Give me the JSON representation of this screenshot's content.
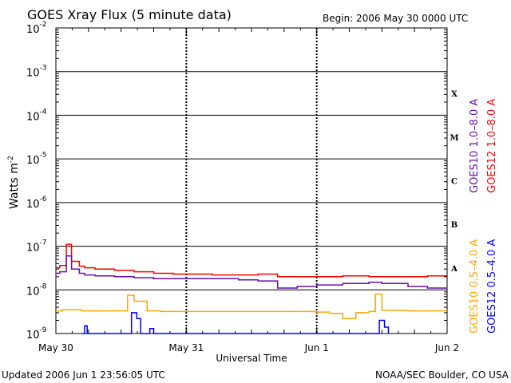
{
  "header": {
    "title": "GOES Xray Flux (5 minute data)",
    "begin_label": "Begin:  2006 May 30 0000 UTC"
  },
  "footer": {
    "updated": "Updated 2006 Jun  1 23:56:05 UTC",
    "credit": "NOAA/SEC Boulder, CO USA"
  },
  "colors": {
    "goes12_long": "#ff0000",
    "goes10_long": "#6a0dad",
    "goes10_short": "#ffa500",
    "goes12_short": "#0000ff"
  },
  "chart_data": {
    "type": "line",
    "title": "GOES Xray Flux (5 minute data)",
    "ylabel": "Watts m",
    "ylabel_sup": "-2",
    "xlabel": "Universal Time",
    "yscale": "log",
    "ylim": [
      1e-09,
      0.01
    ],
    "xlim_days": [
      0,
      3
    ],
    "x_ticks": [
      {
        "day": 0,
        "label": "May 30"
      },
      {
        "day": 1,
        "label": "May 31"
      },
      {
        "day": 2,
        "label": "Jun 1"
      },
      {
        "day": 3,
        "label": "Jun 2"
      }
    ],
    "y_ticks": [
      {
        "exp": -2,
        "base": "10",
        "sup": "-2"
      },
      {
        "exp": -3,
        "base": "10",
        "sup": "-3"
      },
      {
        "exp": -4,
        "base": "10",
        "sup": "-4"
      },
      {
        "exp": -5,
        "base": "10",
        "sup": "-5"
      },
      {
        "exp": -6,
        "base": "10",
        "sup": "-6"
      },
      {
        "exp": -7,
        "base": "10",
        "sup": "-7"
      },
      {
        "exp": -8,
        "base": "10",
        "sup": "-8"
      },
      {
        "exp": -9,
        "base": "10",
        "sup": "-9"
      }
    ],
    "flare_classes": [
      {
        "label": "X",
        "exp": -3.5
      },
      {
        "label": "M",
        "exp": -4.5
      },
      {
        "label": "C",
        "exp": -5.5
      },
      {
        "label": "B",
        "exp": -6.5
      },
      {
        "label": "A",
        "exp": -7.5
      }
    ],
    "legend_right": [
      {
        "text": "GOES12 1.0–8.0 A",
        "color": "#ff0000"
      },
      {
        "text": "GOES10 1.0–8.0 A",
        "color": "#6a0dad"
      }
    ],
    "legend_lower": [
      {
        "text": "GOES12 0.5–4.0 A",
        "color": "#0000ff"
      },
      {
        "text": "GOES10 0.5–4.0 A",
        "color": "#ffa500"
      }
    ],
    "series": [
      {
        "name": "GOES12 1.0–8.0 A",
        "color": "#ff0000",
        "x": [
          0,
          0.03,
          0.08,
          0.12,
          0.18,
          0.22,
          0.3,
          0.45,
          0.6,
          0.75,
          0.9,
          1.0,
          1.2,
          1.4,
          1.55,
          1.7,
          1.85,
          2.0,
          2.2,
          2.4,
          2.5,
          2.7,
          2.85,
          3.0
        ],
        "y": [
          3.2e-08,
          3.6e-08,
          1.1e-07,
          4.5e-08,
          3.5e-08,
          3.2e-08,
          3e-08,
          2.8e-08,
          2.6e-08,
          2.4e-08,
          2.3e-08,
          2.3e-08,
          2.2e-08,
          2.2e-08,
          2.3e-08,
          2e-08,
          2e-08,
          2e-08,
          2.1e-08,
          2e-08,
          2e-08,
          2e-08,
          2.1e-08,
          2e-08
        ]
      },
      {
        "name": "GOES10 1.0–8.0 A",
        "color": "#6a0dad",
        "x": [
          0,
          0.03,
          0.08,
          0.12,
          0.18,
          0.22,
          0.3,
          0.45,
          0.6,
          0.75,
          0.9,
          1.0,
          1.2,
          1.4,
          1.55,
          1.7,
          1.85,
          2.0,
          2.2,
          2.4,
          2.5,
          2.7,
          2.85,
          3.0
        ],
        "y": [
          2.4e-08,
          2.6e-08,
          6e-08,
          3e-08,
          2.4e-08,
          2.2e-08,
          2.1e-08,
          2e-08,
          1.9e-08,
          1.8e-08,
          1.8e-08,
          1.8e-08,
          1.8e-08,
          1.7e-08,
          1.6e-08,
          1.1e-08,
          1.2e-08,
          1.3e-08,
          1.4e-08,
          1.5e-08,
          1.4e-08,
          1.2e-08,
          1.1e-08,
          1.1e-08
        ]
      },
      {
        "name": "GOES10 0.5–4.0 A",
        "color": "#ffa500",
        "x": [
          0,
          0.05,
          0.2,
          0.3,
          0.5,
          0.55,
          0.6,
          0.7,
          0.8,
          1.0,
          1.2,
          1.5,
          1.8,
          2.0,
          2.1,
          2.2,
          2.3,
          2.4,
          2.45,
          2.5,
          2.7,
          2.9,
          3.0
        ],
        "y": [
          3.3e-09,
          3.5e-09,
          3.3e-09,
          3.3e-09,
          3.3e-09,
          7.5e-09,
          5.5e-09,
          3.3e-09,
          3.2e-09,
          3.2e-09,
          3.2e-09,
          3.2e-09,
          3.2e-09,
          3.1e-09,
          2.9e-09,
          2.2e-09,
          3e-09,
          3.2e-09,
          8e-09,
          3.4e-09,
          3.3e-09,
          3.3e-09,
          3.3e-09
        ]
      },
      {
        "name": "GOES12 0.5–4.0 A",
        "color": "#0000ff",
        "x": [
          0.2,
          0.22,
          0.24,
          0.55,
          0.58,
          0.62,
          0.65,
          0.72,
          0.75,
          2.45,
          2.48,
          2.52,
          2.55
        ],
        "y": [
          1e-09,
          1.5e-09,
          1e-09,
          1e-09,
          3e-09,
          2.2e-09,
          1e-09,
          1.3e-09,
          1e-09,
          1e-09,
          2e-09,
          1.4e-09,
          1e-09
        ]
      }
    ]
  }
}
